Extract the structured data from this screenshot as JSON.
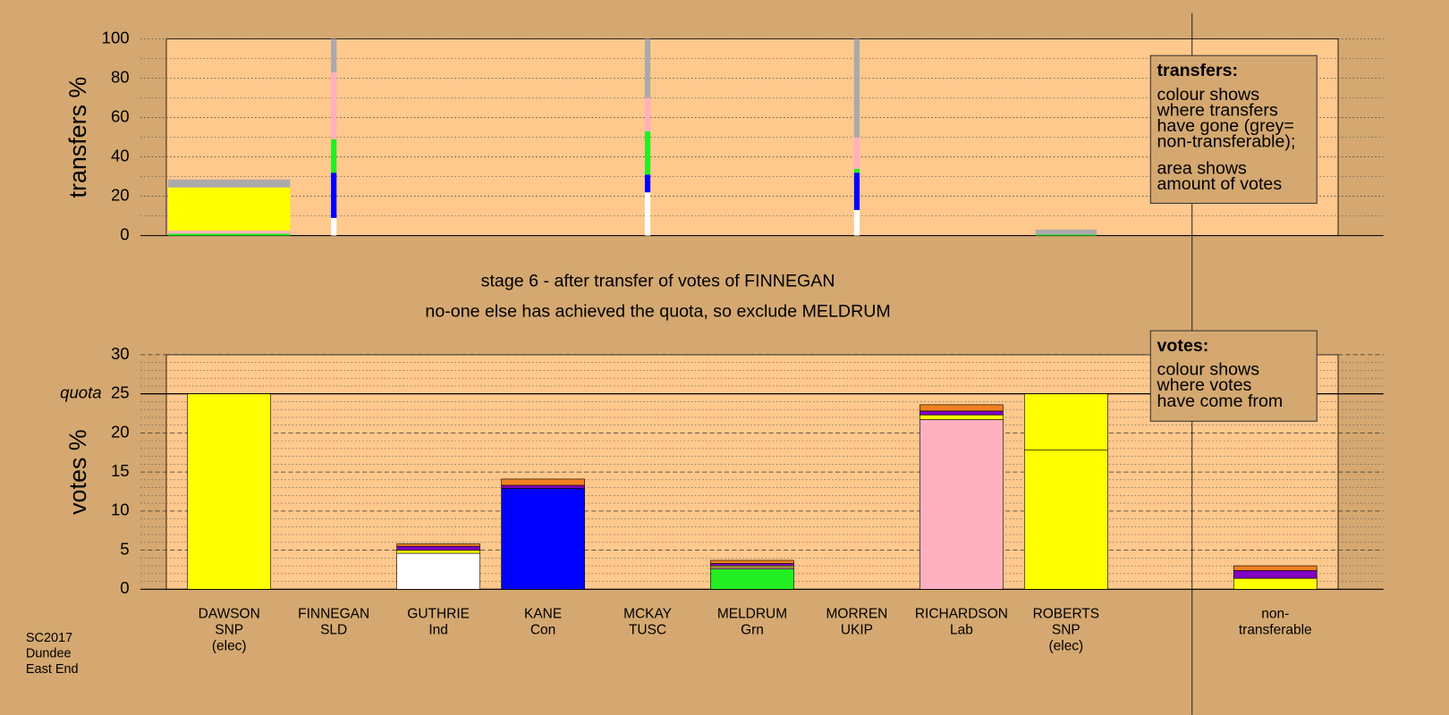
{
  "chart_data": [
    {
      "type": "bar",
      "stacked": true,
      "ylabel": "transfers %",
      "ylim": [
        0,
        100
      ],
      "yticks": [
        0,
        20,
        40,
        60,
        80,
        100
      ],
      "yminor": [
        10,
        30,
        50,
        70,
        90
      ],
      "amounts": [
        22,
        1,
        0,
        0,
        1,
        0,
        1,
        0,
        11,
        0,
        0
      ],
      "series": [
        {
          "color": "#ffffff",
          "values": [
            0,
            9,
            0,
            0,
            22,
            0,
            13,
            0,
            0,
            0,
            0
          ]
        },
        {
          "color": "#0000ff",
          "values": [
            0,
            23,
            0,
            0,
            9,
            0,
            19,
            0,
            0,
            0,
            0
          ]
        },
        {
          "color": "#22ee22",
          "values": [
            1,
            17,
            0,
            0,
            22,
            0,
            2,
            0,
            0.5,
            0,
            0
          ]
        },
        {
          "color": "#ffb0c0",
          "values": [
            1.5,
            34,
            0,
            0,
            17,
            0,
            16,
            0,
            0,
            0,
            0
          ]
        },
        {
          "color": "#ffff00",
          "values": [
            22,
            0,
            0,
            0,
            0,
            0,
            0,
            0,
            0,
            0,
            0
          ]
        },
        {
          "color": "#aaaaaa",
          "values": [
            4,
            17,
            0,
            0,
            30,
            0,
            50,
            0,
            2.5,
            0,
            0
          ]
        }
      ],
      "annotation": {
        "title": "transfers:",
        "lines": [
          [
            "colour shows",
            "where transfers",
            "have gone (grey=",
            "non-transferable);"
          ],
          [
            "area shows",
            "amount of votes"
          ]
        ]
      }
    },
    {
      "type": "bar",
      "stacked": true,
      "title": "stage 6 - after transfer of votes of FINNEGAN",
      "subtitle": "no-one else has achieved the quota, so exclude MELDRUM",
      "ylabel": "votes %",
      "ylim": [
        0,
        30
      ],
      "yticks": [
        0,
        5,
        10,
        15,
        20,
        25,
        30
      ],
      "yminor": [
        1,
        2,
        3,
        4,
        6,
        7,
        8,
        9,
        11,
        12,
        13,
        14,
        16,
        17,
        18,
        19,
        21,
        22,
        23,
        24,
        26,
        27,
        28,
        29
      ],
      "quota": {
        "value": 25,
        "label": "quota"
      },
      "categories": [
        [
          "DAWSON",
          "SNP",
          "(elec)"
        ],
        [
          "FINNEGAN",
          "SLD"
        ],
        [
          "GUTHRIE",
          "Ind"
        ],
        [
          "KANE",
          "Con"
        ],
        [
          "MCKAY",
          "TUSC"
        ],
        [
          "MELDRUM",
          "Grn"
        ],
        [
          "MORREN",
          "UKIP"
        ],
        [
          "RICHARDSON",
          "Lab"
        ],
        [
          "ROBERTS",
          "SNP",
          "(elec)"
        ],
        null,
        [
          "non-",
          "transferable"
        ]
      ],
      "series": [
        {
          "color": "#ffffff",
          "values": [
            0,
            0,
            4.6,
            0,
            0,
            0,
            0,
            0,
            0,
            0,
            0
          ]
        },
        {
          "color": "#0000ff",
          "values": [
            0,
            0,
            0,
            12.9,
            0,
            0,
            0,
            0,
            0,
            0,
            0
          ]
        },
        {
          "color": "#22ee22",
          "values": [
            0,
            0,
            0,
            0,
            0,
            2.6,
            0,
            0,
            0,
            0,
            0
          ]
        },
        {
          "color": "#ffb0c0",
          "values": [
            0,
            0,
            0,
            0,
            0,
            0.2,
            0,
            21.7,
            0,
            0,
            0
          ]
        },
        {
          "color": "#ffff00",
          "values": [
            25,
            0,
            0.4,
            0,
            0,
            0.2,
            0,
            0.6,
            17.8,
            0,
            1.4
          ]
        },
        {
          "color": "#ffff00",
          "values": [
            0,
            0,
            0,
            0,
            0,
            0,
            0,
            0,
            7.2,
            0,
            0
          ]
        },
        {
          "color": "#8000c0",
          "values": [
            0,
            0,
            0.5,
            0.4,
            0,
            0.3,
            0,
            0.5,
            0,
            0,
            1.0
          ]
        },
        {
          "color": "#f08020",
          "values": [
            0,
            0,
            0.3,
            0.8,
            0,
            0.4,
            0,
            0.8,
            0,
            0,
            0.6
          ]
        }
      ],
      "annotation": {
        "title": "votes:",
        "lines": [
          [
            "colour shows",
            "where votes",
            "have come from"
          ]
        ]
      }
    }
  ],
  "footer": [
    "SC2017",
    "Dundee",
    "East End"
  ]
}
